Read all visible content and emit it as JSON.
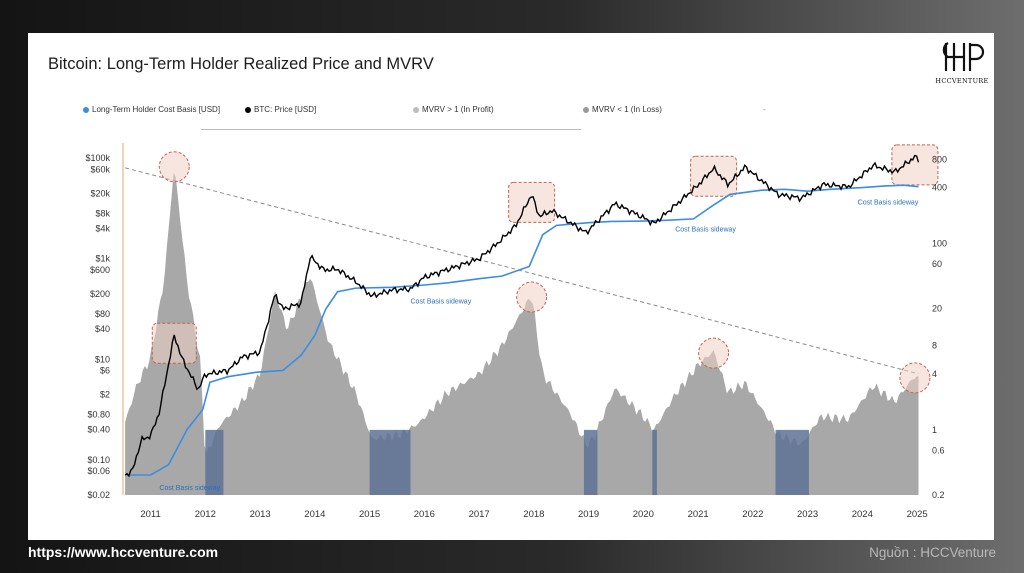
{
  "footer": {
    "url": "https://www.hccventure.com",
    "source": "Nguồn : HCCVenture"
  },
  "logo": {
    "text": "HCCVENTURE",
    "icon": "hp-monogram-logo"
  },
  "legend": {
    "items": [
      {
        "label": "Long-Term Holder Cost Basis [USD]",
        "color": "#3c8de0"
      },
      {
        "label": "BTC: Price [USD]",
        "color": "#000000"
      },
      {
        "label": "MVRV > 1 (In Profit)",
        "color": "#bdbdbd"
      },
      {
        "label": "MVRV < 1 (In Loss)",
        "color": "#9a9a9a"
      }
    ],
    "tail": "-"
  },
  "chart_data": {
    "type": "line",
    "title": "Bitcoin: Long-Term Holder Realized Price and MVRV",
    "x_range": [
      "2010-07",
      "2025-01"
    ],
    "x_ticks": [
      "2011",
      "2012",
      "2013",
      "2014",
      "2015",
      "2016",
      "2017",
      "2018",
      "2019",
      "2020",
      "2021",
      "2022",
      "2023",
      "2024",
      "2025"
    ],
    "y_left": {
      "scale": "log",
      "range": [
        0.02,
        200000
      ],
      "ticks": [
        {
          "label": "$0.02",
          "value": 0.02
        },
        {
          "label": "$0.06",
          "value": 0.06
        },
        {
          "label": "$0.10",
          "value": 0.1
        },
        {
          "label": "$0.40",
          "value": 0.4
        },
        {
          "label": "$0.80",
          "value": 0.8
        },
        {
          "label": "$2",
          "value": 2
        },
        {
          "label": "$6",
          "value": 6
        },
        {
          "label": "$10",
          "value": 10
        },
        {
          "label": "$40",
          "value": 40
        },
        {
          "label": "$80",
          "value": 80
        },
        {
          "label": "$200",
          "value": 200
        },
        {
          "label": "$600",
          "value": 600
        },
        {
          "label": "$1k",
          "value": 1000
        },
        {
          "label": "$4k",
          "value": 4000
        },
        {
          "label": "$8k",
          "value": 8000
        },
        {
          "label": "$20k",
          "value": 20000
        },
        {
          "label": "$60k",
          "value": 60000
        },
        {
          "label": "$100k",
          "value": 100000
        }
      ]
    },
    "y_right": {
      "scale": "log",
      "range": [
        0.2,
        1200
      ],
      "ticks": [
        {
          "label": "0.2",
          "value": 0.2
        },
        {
          "label": "0.6",
          "value": 0.6
        },
        {
          "label": "1",
          "value": 1
        },
        {
          "label": "4",
          "value": 4
        },
        {
          "label": "8",
          "value": 8
        },
        {
          "label": "20",
          "value": 20
        },
        {
          "label": "60",
          "value": 60
        },
        {
          "label": "100",
          "value": 100
        },
        {
          "label": "400",
          "value": 400
        },
        {
          "label": "800",
          "value": 800
        }
      ]
    },
    "grid": false,
    "legend_position": "top",
    "series": [
      {
        "name": "BTC: Price [USD]",
        "axis": "left",
        "color": "#000000",
        "points": [
          [
            "2010-07-15",
            0.05
          ],
          [
            "2010-09-01",
            0.06
          ],
          [
            "2010-11-01",
            0.25
          ],
          [
            "2011-01-01",
            0.3
          ],
          [
            "2011-03-01",
            0.9
          ],
          [
            "2011-05-01",
            8
          ],
          [
            "2011-06-08",
            30
          ],
          [
            "2011-08-01",
            10
          ],
          [
            "2011-11-15",
            2.5
          ],
          [
            "2012-01-01",
            5
          ],
          [
            "2012-06-01",
            6
          ],
          [
            "2012-09-01",
            11
          ],
          [
            "2013-01-01",
            14
          ],
          [
            "2013-04-10",
            200
          ],
          [
            "2013-06-01",
            100
          ],
          [
            "2013-10-01",
            130
          ],
          [
            "2013-12-01",
            1100
          ],
          [
            "2014-03-01",
            600
          ],
          [
            "2014-06-01",
            620
          ],
          [
            "2014-10-01",
            350
          ],
          [
            "2015-01-15",
            180
          ],
          [
            "2015-06-01",
            240
          ],
          [
            "2015-10-01",
            250
          ],
          [
            "2016-01-01",
            430
          ],
          [
            "2016-07-01",
            650
          ],
          [
            "2017-01-01",
            1000
          ],
          [
            "2017-05-01",
            2000
          ],
          [
            "2017-09-01",
            4500
          ],
          [
            "2017-12-17",
            19000
          ],
          [
            "2018-02-06",
            7000
          ],
          [
            "2018-05-01",
            9000
          ],
          [
            "2018-12-15",
            3300
          ],
          [
            "2019-06-26",
            12500
          ],
          [
            "2019-12-15",
            7000
          ],
          [
            "2020-03-13",
            5000
          ],
          [
            "2020-08-01",
            11500
          ],
          [
            "2020-12-31",
            29000
          ],
          [
            "2021-04-14",
            63000
          ],
          [
            "2021-07-20",
            30000
          ],
          [
            "2021-11-10",
            67000
          ],
          [
            "2022-06-18",
            19000
          ],
          [
            "2022-11-21",
            16000
          ],
          [
            "2023-04-14",
            30000
          ],
          [
            "2023-10-01",
            27000
          ],
          [
            "2024-03-14",
            72000
          ],
          [
            "2024-08-05",
            53000
          ],
          [
            "2024-12-17",
            106000
          ],
          [
            "2025-01-10",
            94000
          ]
        ]
      },
      {
        "name": "Long-Term Holder Cost Basis [USD]",
        "axis": "left",
        "color": "#3c8de0",
        "points": [
          [
            "2010-07-15",
            0.05
          ],
          [
            "2011-01-01",
            0.05
          ],
          [
            "2011-05-01",
            0.08
          ],
          [
            "2011-09-01",
            0.4
          ],
          [
            "2011-12-15",
            1
          ],
          [
            "2012-02-01",
            3.5
          ],
          [
            "2012-06-01",
            4.5
          ],
          [
            "2012-12-01",
            5.5
          ],
          [
            "2013-06-01",
            6
          ],
          [
            "2013-10-01",
            12
          ],
          [
            "2014-01-01",
            30
          ],
          [
            "2014-03-15",
            100
          ],
          [
            "2014-06-01",
            220
          ],
          [
            "2014-10-01",
            260
          ],
          [
            "2015-06-01",
            270
          ],
          [
            "2016-01-01",
            300
          ],
          [
            "2016-06-01",
            330
          ],
          [
            "2017-01-01",
            400
          ],
          [
            "2017-06-01",
            450
          ],
          [
            "2017-12-01",
            700
          ],
          [
            "2018-03-01",
            3000
          ],
          [
            "2018-06-01",
            4600
          ],
          [
            "2019-01-01",
            5200
          ],
          [
            "2019-06-01",
            5500
          ],
          [
            "2020-01-01",
            5600
          ],
          [
            "2020-06-01",
            5800
          ],
          [
            "2020-12-01",
            6200
          ],
          [
            "2021-04-01",
            11000
          ],
          [
            "2021-08-01",
            19000
          ],
          [
            "2022-03-01",
            23000
          ],
          [
            "2022-08-01",
            24000
          ],
          [
            "2023-01-01",
            22000
          ],
          [
            "2023-06-01",
            24000
          ],
          [
            "2024-01-01",
            26000
          ],
          [
            "2024-06-01",
            28000
          ],
          [
            "2024-10-01",
            29000
          ],
          [
            "2025-01-10",
            27000
          ]
        ]
      },
      {
        "name": "MVRV",
        "axis": "right",
        "type": "area",
        "color": "#a8a8a8",
        "points": [
          [
            "2010-07-15",
            1.2
          ],
          [
            "2010-10-01",
            3
          ],
          [
            "2011-01-01",
            6
          ],
          [
            "2011-04-01",
            40
          ],
          [
            "2011-06-08",
            700
          ],
          [
            "2011-09-01",
            40
          ],
          [
            "2011-12-01",
            5
          ],
          [
            "2012-01-01",
            0.5
          ],
          [
            "2012-04-01",
            1.1
          ],
          [
            "2012-09-01",
            2
          ],
          [
            "2013-01-01",
            4
          ],
          [
            "2013-04-10",
            30
          ],
          [
            "2013-07-01",
            12
          ],
          [
            "2013-12-01",
            45
          ],
          [
            "2014-04-01",
            9
          ],
          [
            "2014-10-01",
            2.5
          ],
          [
            "2015-01-15",
            0.8
          ],
          [
            "2015-08-01",
            0.9
          ],
          [
            "2015-12-01",
            1.2
          ],
          [
            "2016-06-01",
            2.5
          ],
          [
            "2017-01-01",
            4
          ],
          [
            "2017-06-01",
            8
          ],
          [
            "2017-12-17",
            28
          ],
          [
            "2018-03-01",
            4
          ],
          [
            "2018-09-01",
            1.5
          ],
          [
            "2018-12-15",
            0.7
          ],
          [
            "2019-02-01",
            0.8
          ],
          [
            "2019-06-26",
            2.8
          ],
          [
            "2019-12-15",
            1.5
          ],
          [
            "2020-03-13",
            1.0
          ],
          [
            "2020-08-01",
            2.4
          ],
          [
            "2021-01-01",
            5
          ],
          [
            "2021-04-14",
            7
          ],
          [
            "2021-07-20",
            2.5
          ],
          [
            "2021-11-10",
            3.2
          ],
          [
            "2022-06-18",
            0.9
          ],
          [
            "2022-11-21",
            0.7
          ],
          [
            "2023-04-01",
            1.4
          ],
          [
            "2023-10-01",
            1.3
          ],
          [
            "2024-03-14",
            3
          ],
          [
            "2024-08-05",
            2
          ],
          [
            "2024-12-17",
            3.8
          ],
          [
            "2025-01-10",
            3.5
          ]
        ],
        "in_loss_periods": [
          [
            "2012-01-01",
            "2012-05-01"
          ],
          [
            "2015-01-01",
            "2015-10-01"
          ],
          [
            "2018-12-01",
            "2019-03-01"
          ],
          [
            "2020-03-01",
            "2020-04-01"
          ],
          [
            "2022-06-01",
            "2023-01-10"
          ]
        ]
      }
    ],
    "trendline": {
      "color": "#8a8a8a",
      "style": "dashed",
      "axis": "right",
      "from": [
        "2010-07-15",
        650
      ],
      "to": [
        "2025-01-10",
        4
      ]
    },
    "annotations": [
      {
        "text": "Cost Basis sideway",
        "x": "2011-03-01",
        "y": 0.025,
        "axis": "left",
        "color": "#2a6fbe"
      },
      {
        "text": "Cost Basis sideway",
        "x": "2015-10-01",
        "y": 130,
        "axis": "left",
        "color": "#2a6fbe"
      },
      {
        "text": "Cost Basis sideway",
        "x": "2020-08-01",
        "y": 3500,
        "axis": "left",
        "color": "#2a6fbe"
      },
      {
        "text": "Cost Basis sideway",
        "x": "2023-12-01",
        "y": 12000,
        "axis": "left",
        "color": "#2a6fbe"
      }
    ],
    "highlights": {
      "price_peaks": [
        "2011-06-08",
        "2017-12-17",
        "2021-04-14",
        "2024-12-17"
      ],
      "mvrv_peaks": [
        "2011-06-08",
        "2017-12-17",
        "2021-04-14",
        "2024-12-17"
      ]
    }
  },
  "colors": {
    "card": "#ffffff",
    "highlight_fill": "#f1cfc6",
    "highlight_stroke": "#c0644e",
    "loss_band": "#5d7294",
    "axis_left_line": "#e9a46a"
  }
}
